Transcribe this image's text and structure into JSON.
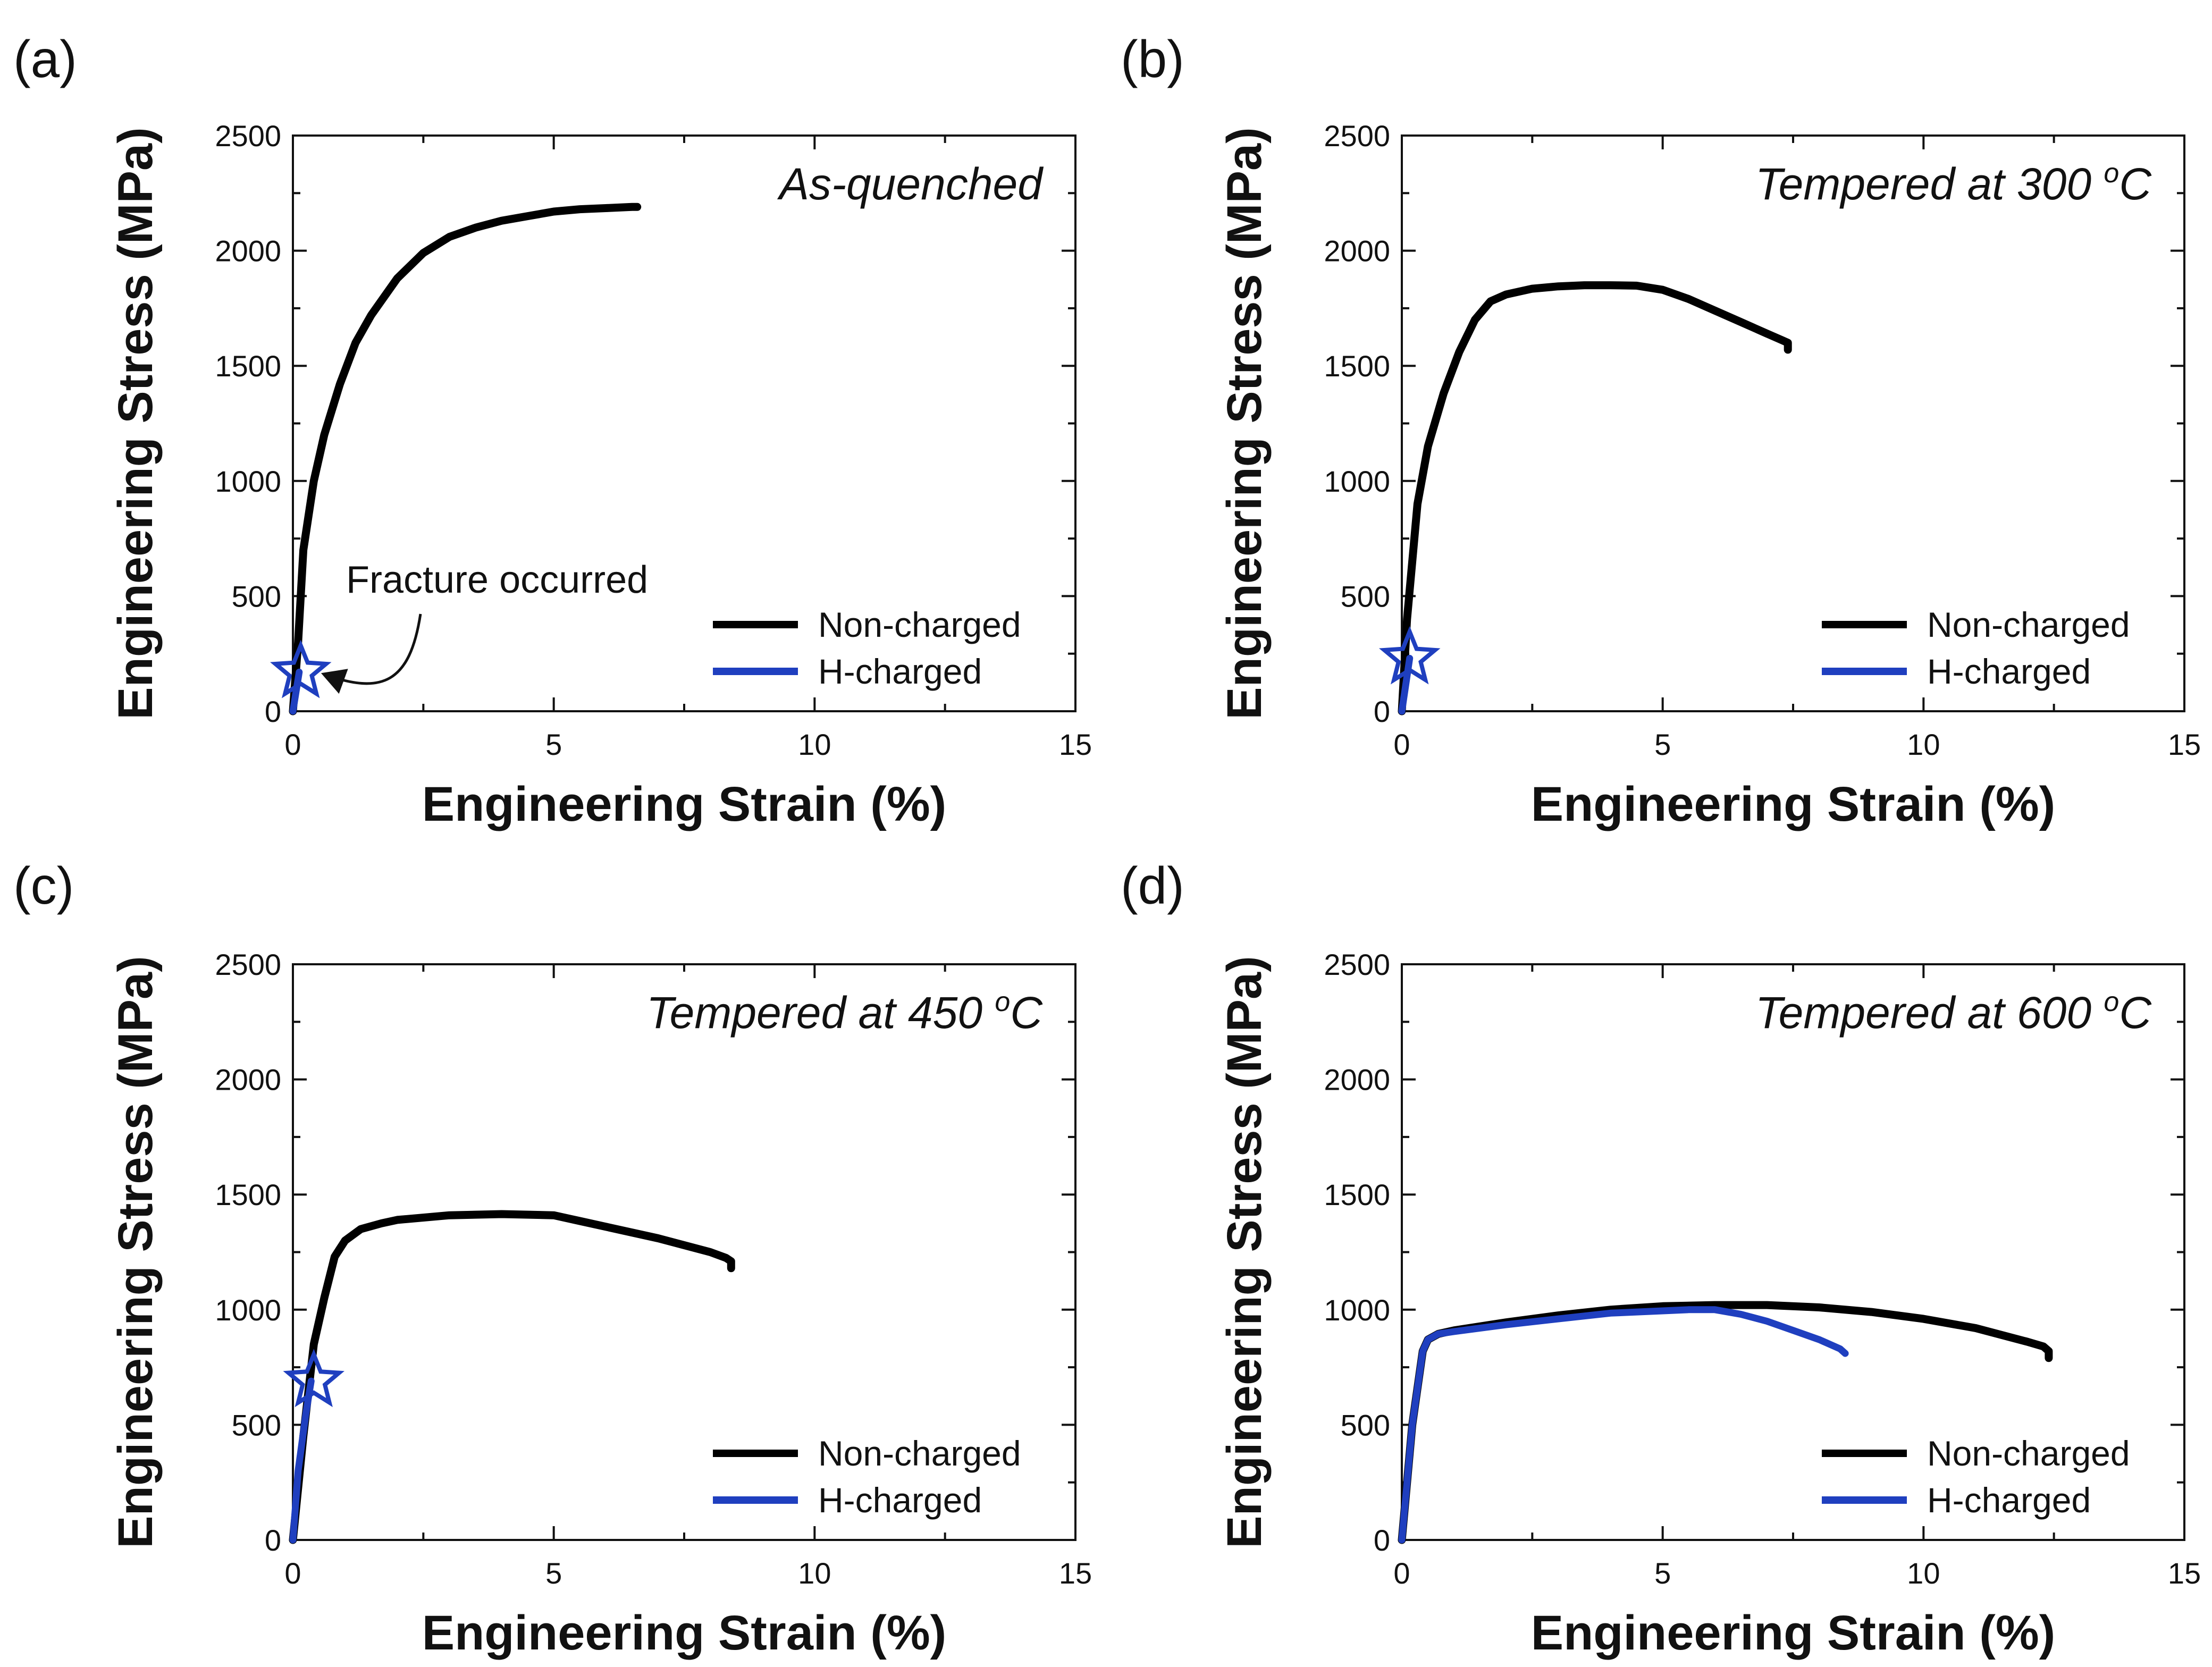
{
  "chart_data": [
    {
      "type": "line",
      "panel_label": "(a)",
      "title": "As-quenched",
      "title_sup": "",
      "title_suffix": "",
      "xlabel": "Engineering Strain (%)",
      "ylabel": "Engineering Stress (MPa)",
      "xlim": [
        0,
        15
      ],
      "ylim": [
        0,
        2500
      ],
      "xticks": [
        0,
        5,
        10,
        15
      ],
      "yticks": [
        0,
        500,
        1000,
        1500,
        2000,
        2500
      ],
      "legend": {
        "location": "bottom-right",
        "entries": [
          "Non-charged",
          "H-charged"
        ]
      },
      "series": [
        {
          "name": "Non-charged",
          "color": "#000000",
          "x": [
            0.0,
            0.1,
            0.2,
            0.4,
            0.6,
            0.9,
            1.2,
            1.5,
            2.0,
            2.5,
            3.0,
            3.5,
            4.0,
            4.5,
            5.0,
            5.5,
            6.0,
            6.5,
            6.6
          ],
          "y": [
            0,
            300,
            700,
            1000,
            1200,
            1420,
            1600,
            1720,
            1880,
            1990,
            2060,
            2100,
            2130,
            2150,
            2170,
            2180,
            2185,
            2190,
            2190
          ]
        },
        {
          "name": "H-charged",
          "color": "#1f3fbf",
          "x": [
            0.0,
            0.12
          ],
          "y": [
            0,
            170
          ]
        }
      ],
      "fracture_marker": {
        "x": 0.15,
        "y": 170,
        "color": "#1f3fbf"
      },
      "annotations": [
        {
          "text": "Fracture occurred",
          "target_x": 0.2,
          "target_y": 150
        }
      ]
    },
    {
      "type": "line",
      "panel_label": "(b)",
      "title": "Tempered at 300 ",
      "title_sup": "o",
      "title_suffix": "C",
      "xlabel": "Engineering Strain (%)",
      "ylabel": "Engineering Stress (MPa)",
      "xlim": [
        0,
        15
      ],
      "ylim": [
        0,
        2500
      ],
      "xticks": [
        0,
        5,
        10,
        15
      ],
      "yticks": [
        0,
        500,
        1000,
        1500,
        2000,
        2500
      ],
      "legend": {
        "location": "bottom-right",
        "entries": [
          "Non-charged",
          "H-charged"
        ]
      },
      "series": [
        {
          "name": "Non-charged",
          "color": "#000000",
          "x": [
            0.0,
            0.1,
            0.3,
            0.5,
            0.8,
            1.1,
            1.4,
            1.7,
            2.0,
            2.5,
            3.0,
            3.5,
            4.0,
            4.5,
            5.0,
            5.5,
            6.0,
            6.5,
            7.0,
            7.3,
            7.4,
            7.4
          ],
          "y": [
            0,
            400,
            900,
            1150,
            1380,
            1560,
            1700,
            1780,
            1810,
            1835,
            1845,
            1850,
            1850,
            1848,
            1830,
            1790,
            1740,
            1690,
            1640,
            1610,
            1600,
            1570
          ]
        },
        {
          "name": "H-charged",
          "color": "#1f3fbf",
          "x": [
            0.0,
            0.15
          ],
          "y": [
            0,
            230
          ]
        }
      ],
      "fracture_marker": {
        "x": 0.15,
        "y": 230,
        "color": "#1f3fbf"
      },
      "annotations": []
    },
    {
      "type": "line",
      "panel_label": "(c)",
      "title": "Tempered at 450 ",
      "title_sup": "o",
      "title_suffix": "C",
      "xlabel": "Engineering Strain (%)",
      "ylabel": "Engineering Stress (MPa)",
      "xlim": [
        0,
        15
      ],
      "ylim": [
        0,
        2500
      ],
      "xticks": [
        0,
        5,
        10,
        15
      ],
      "yticks": [
        0,
        500,
        1000,
        1500,
        2000,
        2500
      ],
      "legend": {
        "location": "bottom-right",
        "entries": [
          "Non-charged",
          "H-charged"
        ]
      },
      "series": [
        {
          "name": "Non-charged",
          "color": "#000000",
          "x": [
            0.0,
            0.2,
            0.4,
            0.6,
            0.8,
            1.0,
            1.3,
            1.7,
            2.0,
            3.0,
            4.0,
            5.0,
            5.5,
            6.0,
            7.0,
            8.0,
            8.3,
            8.4,
            8.4
          ],
          "y": [
            0,
            450,
            850,
            1050,
            1230,
            1300,
            1350,
            1375,
            1390,
            1410,
            1415,
            1410,
            1385,
            1360,
            1310,
            1250,
            1225,
            1210,
            1180
          ]
        },
        {
          "name": "H-charged",
          "color": "#1f3fbf",
          "x": [
            0.0,
            0.1,
            0.25,
            0.35
          ],
          "y": [
            0,
            300,
            550,
            690
          ]
        }
      ],
      "fracture_marker": {
        "x": 0.4,
        "y": 690,
        "color": "#1f3fbf"
      },
      "annotations": []
    },
    {
      "type": "line",
      "panel_label": "(d)",
      "title": "Tempered at 600 ",
      "title_sup": "o",
      "title_suffix": "C",
      "xlabel": "Engineering Strain (%)",
      "ylabel": "Engineering Stress (MPa)",
      "xlim": [
        0,
        15
      ],
      "ylim": [
        0,
        2500
      ],
      "xticks": [
        0,
        5,
        10,
        15
      ],
      "yticks": [
        0,
        500,
        1000,
        1500,
        2000,
        2500
      ],
      "legend": {
        "location": "bottom-right",
        "entries": [
          "Non-charged",
          "H-charged"
        ]
      },
      "series": [
        {
          "name": "Non-charged",
          "color": "#000000",
          "x": [
            0.0,
            0.2,
            0.4,
            0.5,
            0.7,
            1.0,
            2.0,
            3.0,
            4.0,
            5.0,
            6.0,
            7.0,
            8.0,
            9.0,
            10.0,
            11.0,
            12.0,
            12.3,
            12.4,
            12.4
          ],
          "y": [
            0,
            500,
            820,
            870,
            895,
            910,
            945,
            975,
            1000,
            1015,
            1020,
            1020,
            1010,
            990,
            960,
            920,
            860,
            840,
            820,
            790
          ]
        },
        {
          "name": "H-charged",
          "color": "#1f3fbf",
          "x": [
            0.0,
            0.2,
            0.4,
            0.5,
            0.7,
            1.0,
            2.0,
            3.0,
            4.0,
            5.0,
            5.5,
            6.0,
            6.5,
            7.0,
            7.5,
            8.0,
            8.4,
            8.5
          ],
          "y": [
            0,
            500,
            820,
            870,
            895,
            905,
            935,
            960,
            985,
            995,
            1000,
            1000,
            980,
            950,
            910,
            870,
            830,
            810
          ]
        }
      ],
      "fracture_marker": null,
      "annotations": []
    }
  ]
}
